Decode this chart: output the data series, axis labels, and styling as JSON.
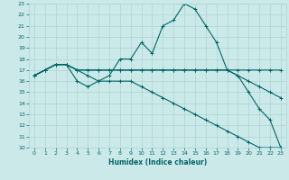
{
  "title": "",
  "xlabel": "Humidex (Indice chaleur)",
  "ylabel": "",
  "background_color": "#cce9e9",
  "grid_color": "#aad4d4",
  "line_color": "#006666",
  "xlim": [
    -0.5,
    23.5
  ],
  "ylim": [
    10,
    23
  ],
  "xticks": [
    0,
    1,
    2,
    3,
    4,
    5,
    6,
    7,
    8,
    9,
    10,
    11,
    12,
    13,
    14,
    15,
    16,
    17,
    18,
    19,
    20,
    21,
    22,
    23
  ],
  "yticks": [
    10,
    11,
    12,
    13,
    14,
    15,
    16,
    17,
    18,
    19,
    20,
    21,
    22,
    23
  ],
  "lines": [
    {
      "x": [
        0,
        1,
        2,
        3,
        4,
        5,
        6,
        7,
        8,
        9,
        10,
        11,
        12,
        13,
        14,
        15,
        16,
        17,
        18,
        19,
        20,
        21,
        22,
        23
      ],
      "y": [
        16.5,
        17,
        17.5,
        17.5,
        16,
        15.5,
        16,
        16.5,
        18,
        18,
        19.5,
        18.5,
        21,
        21.5,
        23,
        22.5,
        21,
        19.5,
        17,
        16.5,
        15,
        13.5,
        12.5,
        10
      ]
    },
    {
      "x": [
        0,
        1,
        2,
        3,
        4,
        5,
        6,
        7,
        8,
        9,
        10,
        11,
        12,
        13,
        14,
        15,
        16,
        17,
        18,
        19,
        20,
        21,
        22,
        23
      ],
      "y": [
        16.5,
        17,
        17.5,
        17.5,
        17,
        17,
        17,
        17,
        17,
        17,
        17,
        17,
        17,
        17,
        17,
        17,
        17,
        17,
        17,
        17,
        17,
        17,
        17,
        17
      ]
    },
    {
      "x": [
        0,
        1,
        2,
        3,
        4,
        5,
        6,
        7,
        8,
        9,
        10,
        11,
        12,
        13,
        14,
        15,
        16,
        17,
        18,
        19,
        20,
        21,
        22,
        23
      ],
      "y": [
        16.5,
        17,
        17.5,
        17.5,
        17,
        17,
        17,
        17,
        17,
        17,
        17,
        17,
        17,
        17,
        17,
        17,
        17,
        17,
        17,
        16.5,
        16,
        15.5,
        15,
        14.5
      ]
    },
    {
      "x": [
        0,
        1,
        2,
        3,
        4,
        5,
        6,
        7,
        8,
        9,
        10,
        11,
        12,
        13,
        14,
        15,
        16,
        17,
        18,
        19,
        20,
        21,
        22,
        23
      ],
      "y": [
        16.5,
        17,
        17.5,
        17.5,
        17,
        16.5,
        16,
        16,
        16,
        16,
        15.5,
        15,
        14.5,
        14,
        13.5,
        13,
        12.5,
        12,
        11.5,
        11,
        10.5,
        10,
        10,
        10
      ]
    }
  ]
}
